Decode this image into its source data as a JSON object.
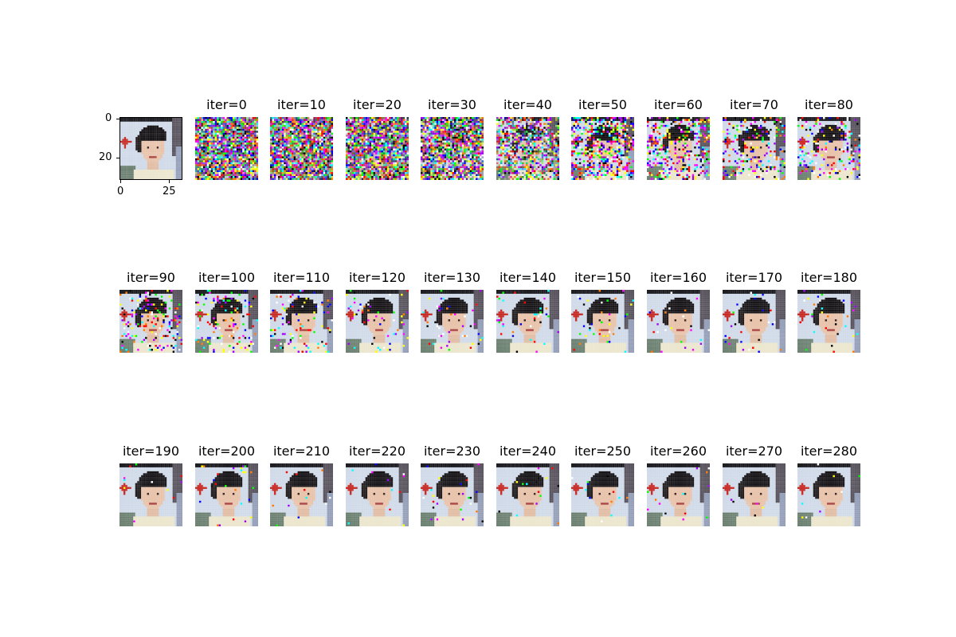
{
  "ground_truth": {
    "y_ticks": [
      "0",
      "20"
    ],
    "x_ticks": [
      "0",
      "25"
    ]
  },
  "iterations": [
    {
      "label": "iter=0",
      "noise": 1.0
    },
    {
      "label": "iter=10",
      "noise": 1.0
    },
    {
      "label": "iter=20",
      "noise": 0.97
    },
    {
      "label": "iter=30",
      "noise": 0.85
    },
    {
      "label": "iter=40",
      "noise": 0.6
    },
    {
      "label": "iter=50",
      "noise": 0.45
    },
    {
      "label": "iter=60",
      "noise": 0.32
    },
    {
      "label": "iter=70",
      "noise": 0.24
    },
    {
      "label": "iter=80",
      "noise": 0.18
    },
    {
      "label": "iter=90",
      "noise": 0.16
    },
    {
      "label": "iter=100",
      "noise": 0.12
    },
    {
      "label": "iter=110",
      "noise": 0.1
    },
    {
      "label": "iter=120",
      "noise": 0.06
    },
    {
      "label": "iter=130",
      "noise": 0.05
    },
    {
      "label": "iter=140",
      "noise": 0.04
    },
    {
      "label": "iter=150",
      "noise": 0.035
    },
    {
      "label": "iter=160",
      "noise": 0.03
    },
    {
      "label": "iter=170",
      "noise": 0.03
    },
    {
      "label": "iter=180",
      "noise": 0.025
    },
    {
      "label": "iter=190",
      "noise": 0.02
    },
    {
      "label": "iter=200",
      "noise": 0.02
    },
    {
      "label": "iter=210",
      "noise": 0.02
    },
    {
      "label": "iter=220",
      "noise": 0.015
    },
    {
      "label": "iter=230",
      "noise": 0.015
    },
    {
      "label": "iter=240",
      "noise": 0.012
    },
    {
      "label": "iter=250",
      "noise": 0.012
    },
    {
      "label": "iter=260",
      "noise": 0.012
    },
    {
      "label": "iter=270",
      "noise": 0.01
    },
    {
      "label": "iter=280",
      "noise": 0.01
    }
  ]
}
